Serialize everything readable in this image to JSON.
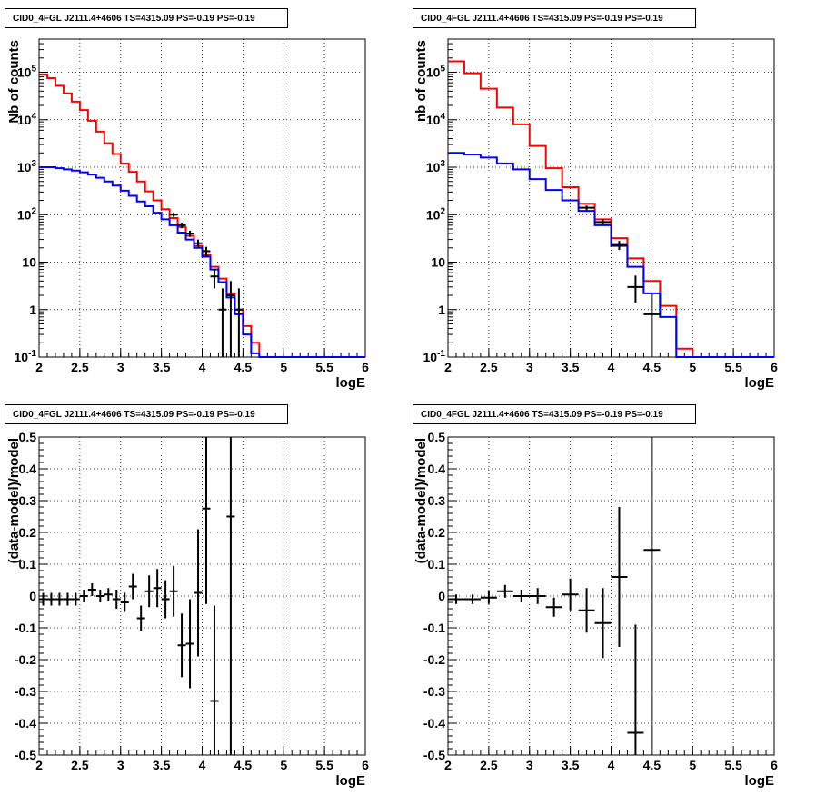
{
  "chart_data": [
    {
      "type": "line",
      "panel": "top-left",
      "title": "CID0_4FGL J2111.4+4606 TS=4315.09 PS=-0.19 PS=-0.19",
      "xlabel": "logE",
      "ylabel": "Nb of counts",
      "xlim": [
        2,
        6
      ],
      "ylim": [
        0.1,
        500000
      ],
      "log_y": true,
      "grid": true,
      "x_ticks": [
        "2",
        "2.5",
        "3",
        "3.5",
        "4",
        "4.5",
        "5",
        "5.5",
        "6"
      ],
      "y_ticks": [
        "10^-1",
        "1",
        "10",
        "10^2",
        "10^3",
        "10^4",
        "10^5"
      ],
      "bin_edges": [
        2.0,
        2.1,
        2.2,
        2.3,
        2.4,
        2.5,
        2.6,
        2.7,
        2.8,
        2.9,
        3.0,
        3.1,
        3.2,
        3.3,
        3.4,
        3.5,
        3.6,
        3.7,
        3.8,
        3.9,
        4.0,
        4.1,
        4.2,
        4.3,
        4.4,
        4.5,
        4.6,
        4.7,
        4.8,
        4.9,
        5.0,
        5.1,
        5.2,
        5.3,
        5.4,
        5.5,
        5.6,
        5.7,
        5.8,
        5.9,
        6.0
      ],
      "series": [
        {
          "color": "#ff0000",
          "values": [
            90000,
            75000,
            52000,
            36000,
            24000,
            16000,
            9500,
            5600,
            3200,
            1900,
            1200,
            800,
            500,
            310,
            200,
            130,
            85,
            55,
            36,
            22,
            14,
            8,
            4.5,
            2.2,
            1.0,
            0.45,
            0.2,
            0.1,
            0.1,
            0.1,
            0.1,
            0.1,
            0.1,
            0.1,
            0.1,
            0.1,
            0.1,
            0.1,
            0.1,
            0.1
          ]
        },
        {
          "color": "#0000ff",
          "values": [
            1000,
            1000,
            950,
            900,
            850,
            780,
            700,
            600,
            500,
            410,
            320,
            250,
            190,
            150,
            110,
            80,
            60,
            42,
            30,
            20,
            13,
            7,
            3.8,
            1.8,
            0.8,
            0.3,
            0.12,
            0.1,
            0.1,
            0.1,
            0.1,
            0.1,
            0.1,
            0.1,
            0.1,
            0.1,
            0.1,
            0.1,
            0.1,
            0.1
          ]
        }
      ],
      "data_points": [
        {
          "x": 3.65,
          "y": 100,
          "xerr": 0.05,
          "yerr_lo": 10,
          "yerr_hi": 10
        },
        {
          "x": 3.75,
          "y": 60,
          "xerr": 0.05,
          "yerr_lo": 8,
          "yerr_hi": 8
        },
        {
          "x": 3.85,
          "y": 40,
          "xerr": 0.05,
          "yerr_lo": 6,
          "yerr_hi": 6
        },
        {
          "x": 3.95,
          "y": 25,
          "xerr": 0.05,
          "yerr_lo": 5,
          "yerr_hi": 5
        },
        {
          "x": 4.05,
          "y": 17,
          "xerr": 0.05,
          "yerr_lo": 4,
          "yerr_hi": 4
        },
        {
          "x": 4.15,
          "y": 5,
          "xerr": 0.05,
          "yerr_lo": 2.2,
          "yerr_hi": 2.2
        },
        {
          "x": 4.25,
          "y": 1,
          "xerr": 0.05,
          "yerr_lo": 0.95,
          "yerr_hi": 1.8
        },
        {
          "x": 4.35,
          "y": 2,
          "xerr": 0.05,
          "yerr_lo": 1.9,
          "yerr_hi": 2.0
        },
        {
          "x": 4.45,
          "y": 1,
          "xerr": 0.05,
          "yerr_lo": 0.95,
          "yerr_hi": 1.8
        }
      ]
    },
    {
      "type": "line",
      "panel": "top-right",
      "title": "CID0_4FGL J2111.4+4606 TS=4315.09 PS=-0.19 PS=-0.19",
      "xlabel": "logE",
      "ylabel": "nb of counts",
      "xlim": [
        2,
        6
      ],
      "ylim": [
        0.1,
        500000
      ],
      "log_y": true,
      "grid": true,
      "x_ticks": [
        "2",
        "2.5",
        "3",
        "3.5",
        "4",
        "4.5",
        "5",
        "5.5",
        "6"
      ],
      "y_ticks": [
        "10^-1",
        "1",
        "10",
        "10^2",
        "10^3",
        "10^4",
        "10^5"
      ],
      "bin_edges": [
        2.0,
        2.2,
        2.4,
        2.6,
        2.8,
        3.0,
        3.2,
        3.4,
        3.6,
        3.8,
        4.0,
        4.2,
        4.4,
        4.6,
        4.8,
        5.0,
        5.2,
        5.4,
        5.6,
        5.8,
        6.0
      ],
      "series": [
        {
          "color": "#ff0000",
          "values": [
            170000,
            95000,
            45000,
            18000,
            8000,
            2800,
            950,
            380,
            170,
            80,
            32,
            12,
            4,
            1.2,
            0.15,
            0.1,
            0.1,
            0.1,
            0.1,
            0.1
          ]
        },
        {
          "color": "#0000ff",
          "values": [
            2000,
            1850,
            1600,
            1200,
            900,
            560,
            330,
            200,
            120,
            60,
            22,
            8,
            2.2,
            0.7,
            0.1,
            0.1,
            0.1,
            0.1,
            0.1,
            0.1
          ]
        }
      ],
      "data_points": [
        {
          "x": 3.7,
          "y": 140,
          "xerr": 0.1,
          "yerr_lo": 15,
          "yerr_hi": 15
        },
        {
          "x": 3.9,
          "y": 70,
          "xerr": 0.1,
          "yerr_lo": 10,
          "yerr_hi": 10
        },
        {
          "x": 4.1,
          "y": 23,
          "xerr": 0.1,
          "yerr_lo": 5,
          "yerr_hi": 5
        },
        {
          "x": 4.3,
          "y": 3,
          "xerr": 0.1,
          "yerr_lo": 1.6,
          "yerr_hi": 2.2
        },
        {
          "x": 4.5,
          "y": 0.8,
          "xerr": 0.1,
          "yerr_lo": 0.7,
          "yerr_hi": 1.3
        }
      ]
    },
    {
      "type": "scatter",
      "panel": "bottom-left",
      "title": "CID0_4FGL J2111.4+4606 TS=4315.09 PS=-0.19 PS=-0.19",
      "xlabel": "logE",
      "ylabel": "(data-model)/model",
      "xlim": [
        2,
        6
      ],
      "ylim": [
        -0.5,
        0.5
      ],
      "grid": true,
      "x_ticks": [
        "2",
        "2.5",
        "3",
        "3.5",
        "4",
        "4.5",
        "5",
        "5.5",
        "6"
      ],
      "y_ticks": [
        "-0.5",
        "-0.4",
        "-0.3",
        "-0.2",
        "-0.1",
        "0",
        "0.1",
        "0.2",
        "0.3",
        "0.4",
        "0.5"
      ],
      "data_points": [
        {
          "x": 2.05,
          "y": -0.01,
          "xerr": 0.05,
          "yerr": 0.02
        },
        {
          "x": 2.15,
          "y": -0.01,
          "xerr": 0.05,
          "yerr": 0.02
        },
        {
          "x": 2.25,
          "y": -0.01,
          "xerr": 0.05,
          "yerr": 0.02
        },
        {
          "x": 2.35,
          "y": -0.01,
          "xerr": 0.05,
          "yerr": 0.02
        },
        {
          "x": 2.45,
          "y": -0.01,
          "xerr": 0.05,
          "yerr": 0.02
        },
        {
          "x": 2.55,
          "y": 0.0,
          "xerr": 0.05,
          "yerr": 0.02
        },
        {
          "x": 2.65,
          "y": 0.02,
          "xerr": 0.05,
          "yerr": 0.02
        },
        {
          "x": 2.75,
          "y": 0.0,
          "xerr": 0.05,
          "yerr": 0.02
        },
        {
          "x": 2.85,
          "y": 0.005,
          "xerr": 0.05,
          "yerr": 0.02
        },
        {
          "x": 2.95,
          "y": -0.01,
          "xerr": 0.05,
          "yerr": 0.03
        },
        {
          "x": 3.05,
          "y": -0.02,
          "xerr": 0.05,
          "yerr": 0.03
        },
        {
          "x": 3.15,
          "y": 0.03,
          "xerr": 0.05,
          "yerr": 0.04
        },
        {
          "x": 3.25,
          "y": -0.07,
          "xerr": 0.05,
          "yerr": 0.04
        },
        {
          "x": 3.35,
          "y": 0.015,
          "xerr": 0.05,
          "yerr": 0.05
        },
        {
          "x": 3.45,
          "y": 0.025,
          "xerr": 0.05,
          "yerr": 0.06
        },
        {
          "x": 3.55,
          "y": -0.01,
          "xerr": 0.05,
          "yerr": 0.06
        },
        {
          "x": 3.65,
          "y": 0.015,
          "xerr": 0.05,
          "yerr": 0.08
        },
        {
          "x": 3.75,
          "y": -0.155,
          "xerr": 0.05,
          "yerr": 0.1
        },
        {
          "x": 3.85,
          "y": -0.15,
          "xerr": 0.05,
          "yerr": 0.14
        },
        {
          "x": 3.95,
          "y": 0.01,
          "xerr": 0.05,
          "yerr": 0.2
        },
        {
          "x": 4.05,
          "y": 0.275,
          "xerr": 0.05,
          "yerr": 0.3
        },
        {
          "x": 4.15,
          "y": -0.33,
          "xerr": 0.05,
          "yerr": 0.3
        },
        {
          "x": 4.35,
          "y": 0.25,
          "xerr": 0.05,
          "yerr": 0.8
        }
      ]
    },
    {
      "type": "scatter",
      "panel": "bottom-right",
      "title": "CID0_4FGL J2111.4+4606 TS=4315.09 PS=-0.19 PS=-0.19",
      "xlabel": "logE",
      "ylabel": "(data-model)/model",
      "xlim": [
        2,
        6
      ],
      "ylim": [
        -0.5,
        0.5
      ],
      "grid": true,
      "x_ticks": [
        "2",
        "2.5",
        "3",
        "3.5",
        "4",
        "4.5",
        "5",
        "5.5",
        "6"
      ],
      "y_ticks": [
        "-0.5",
        "-0.4",
        "-0.3",
        "-0.2",
        "-0.1",
        "0",
        "0.1",
        "0.2",
        "0.3",
        "0.4",
        "0.5"
      ],
      "data_points": [
        {
          "x": 2.1,
          "y": -0.01,
          "xerr": 0.1,
          "yerr": 0.015
        },
        {
          "x": 2.3,
          "y": -0.01,
          "xerr": 0.1,
          "yerr": 0.015
        },
        {
          "x": 2.5,
          "y": -0.005,
          "xerr": 0.1,
          "yerr": 0.02
        },
        {
          "x": 2.7,
          "y": 0.015,
          "xerr": 0.1,
          "yerr": 0.02
        },
        {
          "x": 2.9,
          "y": 0.0,
          "xerr": 0.1,
          "yerr": 0.02
        },
        {
          "x": 3.1,
          "y": 0.0,
          "xerr": 0.1,
          "yerr": 0.025
        },
        {
          "x": 3.3,
          "y": -0.035,
          "xerr": 0.1,
          "yerr": 0.03
        },
        {
          "x": 3.5,
          "y": 0.005,
          "xerr": 0.1,
          "yerr": 0.05
        },
        {
          "x": 3.7,
          "y": -0.045,
          "xerr": 0.1,
          "yerr": 0.07
        },
        {
          "x": 3.9,
          "y": -0.085,
          "xerr": 0.1,
          "yerr": 0.11
        },
        {
          "x": 4.1,
          "y": 0.06,
          "xerr": 0.1,
          "yerr": 0.22
        },
        {
          "x": 4.3,
          "y": -0.43,
          "xerr": 0.1,
          "yerr": 0.34
        },
        {
          "x": 4.5,
          "y": 0.145,
          "xerr": 0.1,
          "yerr": 0.65
        }
      ]
    }
  ]
}
